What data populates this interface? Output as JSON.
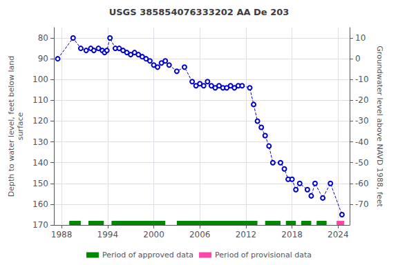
{
  "chart_data": {
    "type": "line",
    "title": "USGS 385854076333202 AA De 203",
    "ylabel": "Depth to water level, feet below land\nsurface",
    "y2label": "Groundwater level above NAVD 1988, feet",
    "xlim": [
      1987.0,
      2025.5
    ],
    "xticks": [
      1988,
      1994,
      2000,
      2006,
      2012,
      2018,
      2024
    ],
    "ylim": [
      170,
      75
    ],
    "yticks": [
      80,
      90,
      100,
      110,
      120,
      130,
      140,
      150,
      160,
      170
    ],
    "y2lim": [
      -80,
      15
    ],
    "y2ticks": [
      10,
      0,
      -10,
      -20,
      -30,
      -40,
      -50,
      -60,
      -70
    ],
    "grid": true,
    "legend": "bottom",
    "series": [
      {
        "type": "line",
        "color": "#0000cc",
        "marker": "circle",
        "line_style": "dashed",
        "x": [
          1987.5,
          1989.5,
          1990.5,
          1991.2,
          1991.8,
          1992.2,
          1992.8,
          1993.3,
          1993.6,
          1993.9,
          1994.3,
          1995.0,
          1995.5,
          1996.0,
          1996.5,
          1997.0,
          1997.5,
          1998.0,
          1998.5,
          1999.0,
          1999.5,
          2000.0,
          2000.5,
          2001.0,
          2001.5,
          2002.0,
          2003.0,
          2004.0,
          2005.0,
          2005.5,
          2006.0,
          2006.5,
          2007.0,
          2007.5,
          2008.0,
          2008.5,
          2009.0,
          2009.5,
          2010.0,
          2010.5,
          2011.0,
          2011.5,
          2012.5,
          2013.0,
          2013.5,
          2014.0,
          2014.5,
          2015.0,
          2015.5,
          2016.5,
          2017.0,
          2017.5,
          2018.0,
          2018.5,
          2019.0,
          2020.0,
          2020.5,
          2021.0,
          2022.0,
          2023.0,
          2024.5
        ],
        "values": [
          90,
          80,
          85,
          86,
          85,
          86,
          85,
          86,
          87,
          86,
          80,
          85,
          85,
          86,
          87,
          88,
          87,
          88,
          89,
          90,
          91,
          93,
          94,
          92,
          91,
          93,
          96,
          94,
          101,
          103,
          102,
          103,
          101,
          103,
          104,
          103,
          104,
          104,
          103,
          104,
          103,
          103,
          104,
          112,
          120,
          123,
          127,
          132,
          140,
          140,
          143,
          148,
          148,
          153,
          150,
          153,
          156,
          150,
          157,
          150,
          165
        ]
      },
      {
        "type": "period",
        "name": "Period of approved data",
        "color": "#008800",
        "values": [
          [
            1989.0,
            1990.5
          ],
          [
            1991.5,
            1993.5
          ],
          [
            1994.5,
            2001.5
          ],
          [
            2003.0,
            2013.5
          ],
          [
            2014.5,
            2016.5
          ],
          [
            2017.2,
            2018.5
          ],
          [
            2019.2,
            2020.5
          ],
          [
            2021.2,
            2022.5
          ]
        ]
      },
      {
        "type": "period",
        "name": "Period of provisional data",
        "color": "#ff44aa",
        "values": [
          [
            2023.8,
            2024.8
          ]
        ]
      }
    ]
  }
}
